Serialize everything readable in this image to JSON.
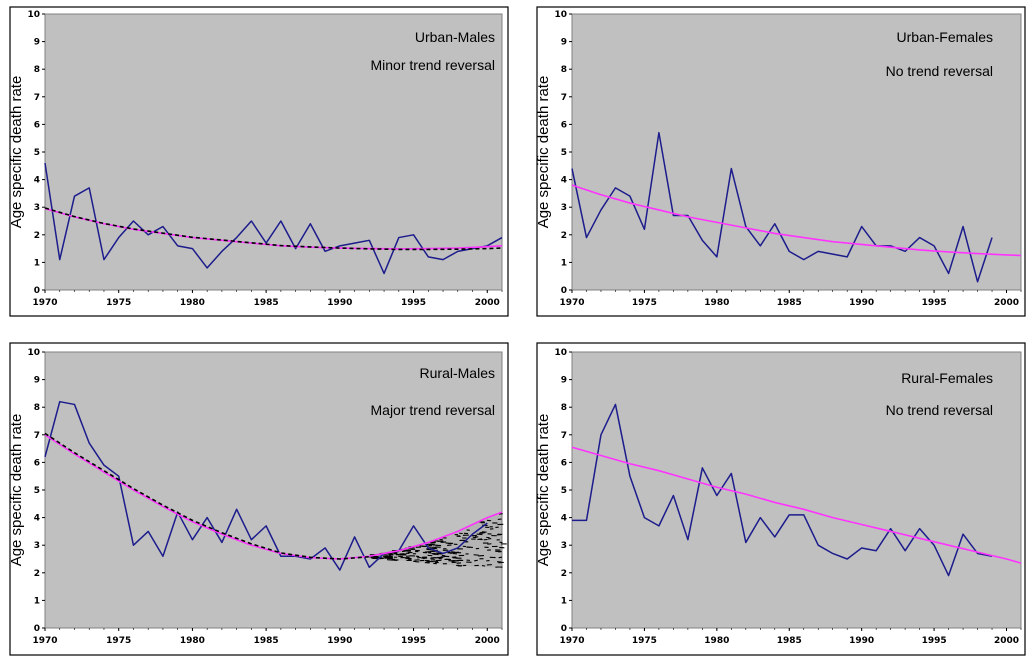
{
  "chart_data": [
    {
      "type": "line",
      "ylabel": "Age specific death rate",
      "annotations": [
        "Urban-Males",
        "Minor trend reversal"
      ],
      "xlim": [
        1970,
        2001
      ],
      "ylim": [
        0,
        10
      ],
      "x_ticks": [
        1970,
        1975,
        1980,
        1985,
        1990,
        1995,
        2000
      ],
      "y_ticks": [
        0,
        1,
        2,
        3,
        4,
        5,
        6,
        7,
        8,
        9,
        10
      ],
      "x_tick_labels": [
        "1970",
        "1975",
        "1980",
        "1985",
        "1990",
        "1995",
        "2000"
      ],
      "y_tick_labels": [
        "0",
        "1",
        "2",
        "3",
        "4",
        "5",
        "6",
        "7",
        "8",
        "9",
        "10"
      ],
      "grid": false,
      "series": [
        {
          "kind": "observed",
          "color": "#1c1c8c",
          "x": [
            1970,
            1971,
            1972,
            1973,
            1974,
            1975,
            1976,
            1977,
            1978,
            1979,
            1980,
            1981,
            1982,
            1983,
            1984,
            1985,
            1986,
            1987,
            1988,
            1989,
            1990,
            1991,
            1992,
            1993,
            1994,
            1995,
            1996,
            1997,
            1998,
            1999,
            2000,
            2001
          ],
          "y": [
            4.6,
            1.1,
            3.4,
            3.7,
            1.1,
            1.9,
            2.5,
            2.0,
            2.3,
            1.6,
            1.5,
            0.8,
            1.4,
            1.9,
            2.5,
            1.7,
            2.5,
            1.5,
            2.4,
            1.4,
            1.6,
            1.7,
            1.8,
            0.6,
            1.9,
            2.0,
            1.2,
            1.1,
            1.4,
            1.5,
            1.6,
            1.9
          ]
        },
        {
          "kind": "trend",
          "color": "#ff33ff",
          "x": [
            1970,
            1972,
            1974,
            1976,
            1978,
            1980,
            1982,
            1984,
            1986,
            1988,
            1990,
            1992,
            1994,
            1996,
            1998,
            2000,
            2001
          ],
          "y": [
            2.95,
            2.65,
            2.4,
            2.2,
            2.05,
            1.9,
            1.8,
            1.7,
            1.6,
            1.55,
            1.52,
            1.5,
            1.49,
            1.5,
            1.52,
            1.57,
            1.6
          ]
        },
        {
          "kind": "trend-dashed",
          "color": "#000000",
          "x": [
            1970,
            1972,
            1974,
            1976,
            1978,
            1980,
            1982,
            1984,
            1986,
            1988,
            1990,
            1992,
            1994,
            1996,
            1998,
            2000,
            2001
          ],
          "y": [
            2.97,
            2.66,
            2.41,
            2.21,
            2.06,
            1.91,
            1.81,
            1.71,
            1.61,
            1.56,
            1.52,
            1.49,
            1.47,
            1.47,
            1.48,
            1.5,
            1.52
          ]
        }
      ]
    },
    {
      "type": "line",
      "ylabel": "Age specific death rate",
      "annotations": [
        "Urban-Females",
        "No trend reversal"
      ],
      "xlim": [
        1970,
        2001
      ],
      "ylim": [
        0,
        10
      ],
      "x_ticks": [
        1970,
        1975,
        1980,
        1985,
        1990,
        1995,
        2000
      ],
      "y_ticks": [
        0,
        1,
        2,
        3,
        4,
        5,
        6,
        7,
        8,
        9,
        10
      ],
      "x_tick_labels": [
        "1970",
        "1975",
        "1980",
        "1985",
        "1990",
        "1995",
        "2000"
      ],
      "y_tick_labels": [
        "0",
        "1",
        "2",
        "3",
        "4",
        "5",
        "6",
        "7",
        "8",
        "9",
        "10"
      ],
      "grid": false,
      "series": [
        {
          "kind": "observed",
          "color": "#1c1c8c",
          "x": [
            1970,
            1971,
            1972,
            1973,
            1974,
            1975,
            1976,
            1977,
            1978,
            1979,
            1980,
            1981,
            1982,
            1983,
            1984,
            1985,
            1986,
            1987,
            1988,
            1989,
            1990,
            1991,
            1992,
            1993,
            1994,
            1995,
            1996,
            1997,
            1998,
            1999
          ],
          "y": [
            4.4,
            1.9,
            2.9,
            3.7,
            3.4,
            2.2,
            5.7,
            2.7,
            2.7,
            1.8,
            1.2,
            4.4,
            2.3,
            1.6,
            2.4,
            1.4,
            1.1,
            1.4,
            1.3,
            1.2,
            2.3,
            1.6,
            1.6,
            1.4,
            1.9,
            1.6,
            0.6,
            2.3,
            0.3,
            1.9
          ]
        },
        {
          "kind": "trend",
          "color": "#ff33ff",
          "x": [
            1970,
            1972,
            1974,
            1976,
            1978,
            1980,
            1982,
            1984,
            1986,
            1988,
            1990,
            1992,
            1994,
            1996,
            1998,
            2000,
            2001
          ],
          "y": [
            3.8,
            3.45,
            3.15,
            2.9,
            2.65,
            2.45,
            2.25,
            2.05,
            1.9,
            1.75,
            1.65,
            1.55,
            1.45,
            1.38,
            1.32,
            1.27,
            1.25
          ]
        }
      ]
    },
    {
      "type": "line",
      "ylabel": "Age specific death rate",
      "annotations": [
        "Rural-Males",
        "Major trend reversal"
      ],
      "xlim": [
        1970,
        2001
      ],
      "ylim": [
        0,
        10
      ],
      "x_ticks": [
        1970,
        1975,
        1980,
        1985,
        1990,
        1995,
        2000
      ],
      "y_ticks": [
        0,
        1,
        2,
        3,
        4,
        5,
        6,
        7,
        8,
        9,
        10
      ],
      "x_tick_labels": [
        "1970",
        "1975",
        "1980",
        "1985",
        "1990",
        "1995",
        "2000"
      ],
      "y_tick_labels": [
        "0",
        "1",
        "2",
        "3",
        "4",
        "5",
        "6",
        "7",
        "8",
        "9",
        "10"
      ],
      "grid": false,
      "confidence_band": {
        "color": "#000000",
        "x": [
          1992,
          1994,
          1996,
          1998,
          2000,
          2001
        ],
        "upper": [
          2.65,
          2.85,
          3.1,
          3.5,
          4.0,
          4.2
        ],
        "lower": [
          2.5,
          2.45,
          2.35,
          2.25,
          2.2,
          2.2
        ]
      },
      "series": [
        {
          "kind": "observed",
          "color": "#1c1c8c",
          "x": [
            1970,
            1971,
            1972,
            1973,
            1974,
            1975,
            1976,
            1977,
            1978,
            1979,
            1980,
            1981,
            1982,
            1983,
            1984,
            1985,
            1986,
            1987,
            1988,
            1989,
            1990,
            1991,
            1992,
            1993,
            1994,
            1995,
            1996,
            1997,
            1998,
            1999,
            2000
          ],
          "y": [
            6.2,
            8.2,
            8.1,
            6.7,
            5.9,
            5.5,
            3.0,
            3.5,
            2.6,
            4.2,
            3.2,
            4.0,
            3.1,
            4.3,
            3.2,
            3.7,
            2.6,
            2.6,
            2.5,
            2.9,
            2.1,
            3.3,
            2.2,
            2.7,
            2.8,
            3.7,
            2.9,
            2.7,
            2.9,
            3.4,
            3.8
          ]
        },
        {
          "kind": "trend",
          "color": "#ff33ff",
          "x": [
            1970,
            1972,
            1974,
            1976,
            1978,
            1980,
            1982,
            1984,
            1986,
            1988,
            1990,
            1992,
            1994,
            1996,
            1998,
            2000,
            2001
          ],
          "y": [
            7.0,
            6.3,
            5.65,
            5.0,
            4.4,
            3.85,
            3.4,
            3.0,
            2.7,
            2.55,
            2.5,
            2.6,
            2.8,
            3.1,
            3.5,
            4.0,
            4.2
          ]
        },
        {
          "kind": "trend-dashed",
          "color": "#000000",
          "x": [
            1970,
            1972,
            1974,
            1976,
            1978,
            1980,
            1982,
            1984,
            1986,
            1988,
            1990,
            1992
          ],
          "y": [
            7.05,
            6.35,
            5.7,
            5.05,
            4.45,
            3.9,
            3.45,
            3.05,
            2.72,
            2.56,
            2.5,
            2.58
          ]
        }
      ]
    },
    {
      "type": "line",
      "ylabel": "Age specific death rate",
      "annotations": [
        "Rural-Females",
        "No trend reversal"
      ],
      "xlim": [
        1970,
        2001
      ],
      "ylim": [
        0,
        10
      ],
      "x_ticks": [
        1970,
        1975,
        1980,
        1985,
        1990,
        1995,
        2000
      ],
      "y_ticks": [
        0,
        1,
        2,
        3,
        4,
        5,
        6,
        7,
        8,
        9,
        10
      ],
      "x_tick_labels": [
        "1970",
        "1975",
        "1980",
        "1985",
        "1990",
        "1995",
        "2000"
      ],
      "y_tick_labels": [
        "0",
        "1",
        "2",
        "3",
        "4",
        "5",
        "6",
        "7",
        "8",
        "9",
        "10"
      ],
      "grid": false,
      "series": [
        {
          "kind": "observed",
          "color": "#1c1c8c",
          "x": [
            1970,
            1971,
            1972,
            1973,
            1974,
            1975,
            1976,
            1977,
            1978,
            1979,
            1980,
            1981,
            1982,
            1983,
            1984,
            1985,
            1986,
            1987,
            1988,
            1989,
            1990,
            1991,
            1992,
            1993,
            1994,
            1995,
            1996,
            1997,
            1998,
            1999
          ],
          "y": [
            3.9,
            3.9,
            7.0,
            8.1,
            5.5,
            4.0,
            3.7,
            4.8,
            3.2,
            5.8,
            4.8,
            5.6,
            3.1,
            4.0,
            3.3,
            4.1,
            4.1,
            3.0,
            2.7,
            2.5,
            2.9,
            2.8,
            3.6,
            2.8,
            3.6,
            3.0,
            1.9,
            3.4,
            2.7,
            2.6
          ]
        },
        {
          "kind": "trend",
          "color": "#ff33ff",
          "x": [
            1970,
            1972,
            1974,
            1976,
            1978,
            1980,
            1982,
            1984,
            1986,
            1988,
            1990,
            1992,
            1994,
            1996,
            1998,
            2000,
            2001
          ],
          "y": [
            6.55,
            6.25,
            5.95,
            5.7,
            5.4,
            5.1,
            4.85,
            4.55,
            4.3,
            4.0,
            3.75,
            3.5,
            3.25,
            3.0,
            2.75,
            2.5,
            2.35
          ]
        }
      ]
    }
  ]
}
